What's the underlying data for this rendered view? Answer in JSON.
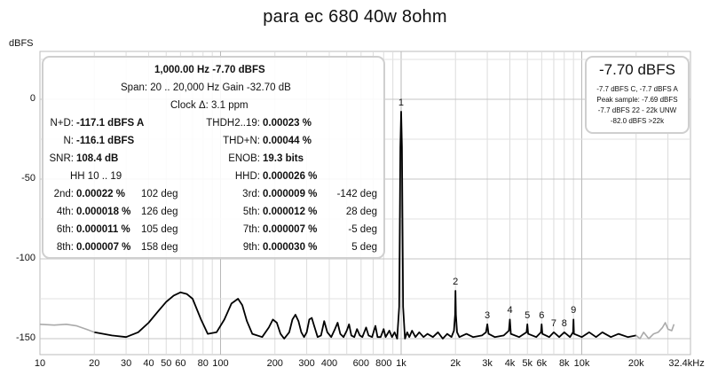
{
  "chart_data": {
    "type": "line",
    "title": "para ec 680 40w 8ohm",
    "ylabel": "dBFS",
    "xlabel": "",
    "x_scale": "log",
    "xlim": [
      10,
      40000
    ],
    "ylim": [
      -160,
      30
    ],
    "grid": true,
    "y_ticks": [
      {
        "value": 0,
        "label": "0"
      },
      {
        "value": -50,
        "label": "-50"
      },
      {
        "value": -100,
        "label": "-100"
      },
      {
        "value": -150,
        "label": "-150"
      }
    ],
    "x_ticks": [
      {
        "value": 10,
        "label": "10"
      },
      {
        "value": 20,
        "label": "20"
      },
      {
        "value": 30,
        "label": "30"
      },
      {
        "value": 40,
        "label": "40"
      },
      {
        "value": 50,
        "label": "50"
      },
      {
        "value": 60,
        "label": "60"
      },
      {
        "value": 80,
        "label": "80"
      },
      {
        "value": 100,
        "label": "100"
      },
      {
        "value": 200,
        "label": "200"
      },
      {
        "value": 300,
        "label": "300"
      },
      {
        "value": 400,
        "label": "400"
      },
      {
        "value": 600,
        "label": "600"
      },
      {
        "value": 800,
        "label": "800"
      },
      {
        "value": 1000,
        "label": "1k"
      },
      {
        "value": 2000,
        "label": "2k"
      },
      {
        "value": 3000,
        "label": "3k"
      },
      {
        "value": 4000,
        "label": "4k"
      },
      {
        "value": 5000,
        "label": "5k"
      },
      {
        "value": 6000,
        "label": "6k"
      },
      {
        "value": 8000,
        "label": "8k"
      },
      {
        "value": 10000,
        "label": "10k"
      },
      {
        "value": 20000,
        "label": "20k"
      },
      {
        "value": 32400,
        "label": "32.4kHz"
      }
    ],
    "series": [
      {
        "color": "#000000",
        "points": [
          [
            20,
            -146
          ],
          [
            25,
            -148
          ],
          [
            30,
            -149
          ],
          [
            35,
            -146
          ],
          [
            40,
            -140
          ],
          [
            45,
            -133
          ],
          [
            50,
            -127
          ],
          [
            55,
            -123
          ],
          [
            60,
            -121
          ],
          [
            65,
            -122
          ],
          [
            70,
            -125
          ],
          [
            78,
            -138
          ],
          [
            85,
            -147
          ],
          [
            95,
            -146
          ],
          [
            105,
            -138
          ],
          [
            115,
            -128
          ],
          [
            125,
            -125
          ],
          [
            132,
            -129
          ],
          [
            140,
            -139
          ],
          [
            150,
            -147
          ],
          [
            170,
            -149
          ],
          [
            185,
            -143
          ],
          [
            195,
            -138
          ],
          [
            205,
            -140
          ],
          [
            215,
            -147
          ],
          [
            225,
            -150
          ],
          [
            240,
            -146
          ],
          [
            250,
            -138
          ],
          [
            260,
            -135
          ],
          [
            270,
            -139
          ],
          [
            280,
            -146
          ],
          [
            290,
            -149
          ],
          [
            300,
            -146
          ],
          [
            310,
            -138
          ],
          [
            320,
            -137
          ],
          [
            330,
            -142
          ],
          [
            345,
            -149
          ],
          [
            360,
            -148
          ],
          [
            375,
            -139
          ],
          [
            390,
            -146
          ],
          [
            410,
            -149
          ],
          [
            430,
            -144
          ],
          [
            445,
            -140
          ],
          [
            460,
            -147
          ],
          [
            480,
            -149
          ],
          [
            500,
            -145
          ],
          [
            515,
            -141
          ],
          [
            530,
            -148
          ],
          [
            550,
            -149
          ],
          [
            570,
            -144
          ],
          [
            590,
            -148
          ],
          [
            610,
            -149
          ],
          [
            640,
            -143
          ],
          [
            660,
            -148
          ],
          [
            690,
            -149
          ],
          [
            720,
            -142
          ],
          [
            740,
            -149
          ],
          [
            770,
            -149
          ],
          [
            800,
            -144
          ],
          [
            820,
            -149
          ],
          [
            860,
            -145
          ],
          [
            890,
            -149
          ],
          [
            920,
            -146
          ],
          [
            950,
            -150
          ],
          [
            975,
            -130
          ],
          [
            990,
            -30
          ],
          [
            1000,
            -7.7
          ],
          [
            1010,
            -30
          ],
          [
            1025,
            -130
          ],
          [
            1050,
            -150
          ],
          [
            1080,
            -146
          ],
          [
            1110,
            -149
          ],
          [
            1150,
            -145
          ],
          [
            1200,
            -149
          ],
          [
            1260,
            -146
          ],
          [
            1330,
            -149
          ],
          [
            1400,
            -147
          ],
          [
            1500,
            -149
          ],
          [
            1600,
            -146
          ],
          [
            1700,
            -150
          ],
          [
            1800,
            -147
          ],
          [
            1900,
            -149
          ],
          [
            1960,
            -145
          ],
          [
            1990,
            -135
          ],
          [
            2000,
            -120
          ],
          [
            2010,
            -135
          ],
          [
            2040,
            -146
          ],
          [
            2100,
            -149
          ],
          [
            2300,
            -147
          ],
          [
            2500,
            -149
          ],
          [
            2800,
            -148
          ],
          [
            2950,
            -146
          ],
          [
            3000,
            -141
          ],
          [
            3050,
            -147
          ],
          [
            3300,
            -149
          ],
          [
            3700,
            -148
          ],
          [
            3950,
            -145
          ],
          [
            4000,
            -138
          ],
          [
            4050,
            -147
          ],
          [
            4500,
            -149
          ],
          [
            4950,
            -146
          ],
          [
            5000,
            -141
          ],
          [
            5050,
            -147
          ],
          [
            5600,
            -149
          ],
          [
            5950,
            -146
          ],
          [
            6000,
            -141
          ],
          [
            6050,
            -147
          ],
          [
            6600,
            -149
          ],
          [
            7000,
            -146
          ],
          [
            7500,
            -149
          ],
          [
            8000,
            -146
          ],
          [
            8600,
            -149
          ],
          [
            8950,
            -146
          ],
          [
            9000,
            -138
          ],
          [
            9050,
            -147
          ],
          [
            10000,
            -149
          ],
          [
            11000,
            -146
          ],
          [
            12000,
            -149
          ],
          [
            13000,
            -146
          ],
          [
            14500,
            -149
          ],
          [
            16000,
            -147
          ],
          [
            18000,
            -149
          ],
          [
            20000,
            -148
          ]
        ]
      },
      {
        "color": "#aaaaaa",
        "points": [
          [
            10,
            -141
          ],
          [
            12,
            -141.5
          ],
          [
            14,
            -141
          ],
          [
            16,
            -142
          ],
          [
            18,
            -144
          ],
          [
            20,
            -146
          ]
        ]
      },
      {
        "color": "#aaaaaa",
        "points": [
          [
            20000,
            -148
          ],
          [
            21000,
            -150
          ],
          [
            22000,
            -146
          ],
          [
            23500,
            -150
          ],
          [
            25000,
            -147
          ],
          [
            26500,
            -146
          ],
          [
            28000,
            -143
          ],
          [
            29000,
            -140
          ],
          [
            30000,
            -144
          ],
          [
            31500,
            -145
          ],
          [
            32400,
            -141
          ]
        ]
      }
    ],
    "harmonic_markers": [
      {
        "label": "1",
        "freq": 1000,
        "level": -7.7
      },
      {
        "label": "2",
        "freq": 2000,
        "level": -120
      },
      {
        "label": "3",
        "freq": 3000,
        "level": -141
      },
      {
        "label": "4",
        "freq": 4000,
        "level": -138
      },
      {
        "label": "5",
        "freq": 5000,
        "level": -141
      },
      {
        "label": "6",
        "freq": 6000,
        "level": -141
      },
      {
        "label": "7",
        "freq": 7000,
        "level": -146
      },
      {
        "label": "8",
        "freq": 8000,
        "level": -146
      },
      {
        "label": "9",
        "freq": 9000,
        "level": -138
      }
    ]
  },
  "stats": {
    "header_line": "1,000.00 Hz  -7.70 dBFS",
    "span_line": "Span: 20 .. 20,000 Hz   Gain -32.70 dB",
    "clock_line": "Clock Δ: 3.1 ppm",
    "nd_label": "N+D:",
    "nd_value": "-117.1 dBFS A",
    "thd_label": "THDH2..19:",
    "thd_value": "0.00023 %",
    "n_label": "N:",
    "n_value": "-116.1 dBFS",
    "thdn_label": "THD+N:",
    "thdn_value": "0.00044 %",
    "snr_label": "SNR:",
    "snr_value": "108.4 dB",
    "enob_label": "ENOB:",
    "enob_value": "19.3 bits",
    "hh_label": "HH 10 .. 19",
    "hhd_label": "HHD:",
    "hhd_value": "0.000026 %",
    "harmonics": [
      {
        "l1": "2nd:",
        "v1": "0.00022 %",
        "d1": "102 deg",
        "l2": "3rd:",
        "v2": "0.000009 %",
        "d2": "-142 deg"
      },
      {
        "l1": "4th:",
        "v1": "0.000018 %",
        "d1": "126 deg",
        "l2": "5th:",
        "v2": "0.000012 %",
        "d2": "28 deg"
      },
      {
        "l1": "6th:",
        "v1": "0.000011 %",
        "d1": "105 deg",
        "l2": "7th:",
        "v2": "0.000007 %",
        "d2": "-5 deg"
      },
      {
        "l1": "8th:",
        "v1": "0.000007 %",
        "d1": "158 deg",
        "l2": "9th:",
        "v2": "0.000030 %",
        "d2": "5 deg"
      }
    ]
  },
  "peak": {
    "main": "-7.70 dBFS",
    "lines": [
      "-7.7 dBFS C, -7.7 dBFS A",
      "Peak sample: -7.69 dBFS",
      "-7.7 dBFS 22 - 22k UNW",
      "-82.0 dBFS >22k"
    ]
  }
}
